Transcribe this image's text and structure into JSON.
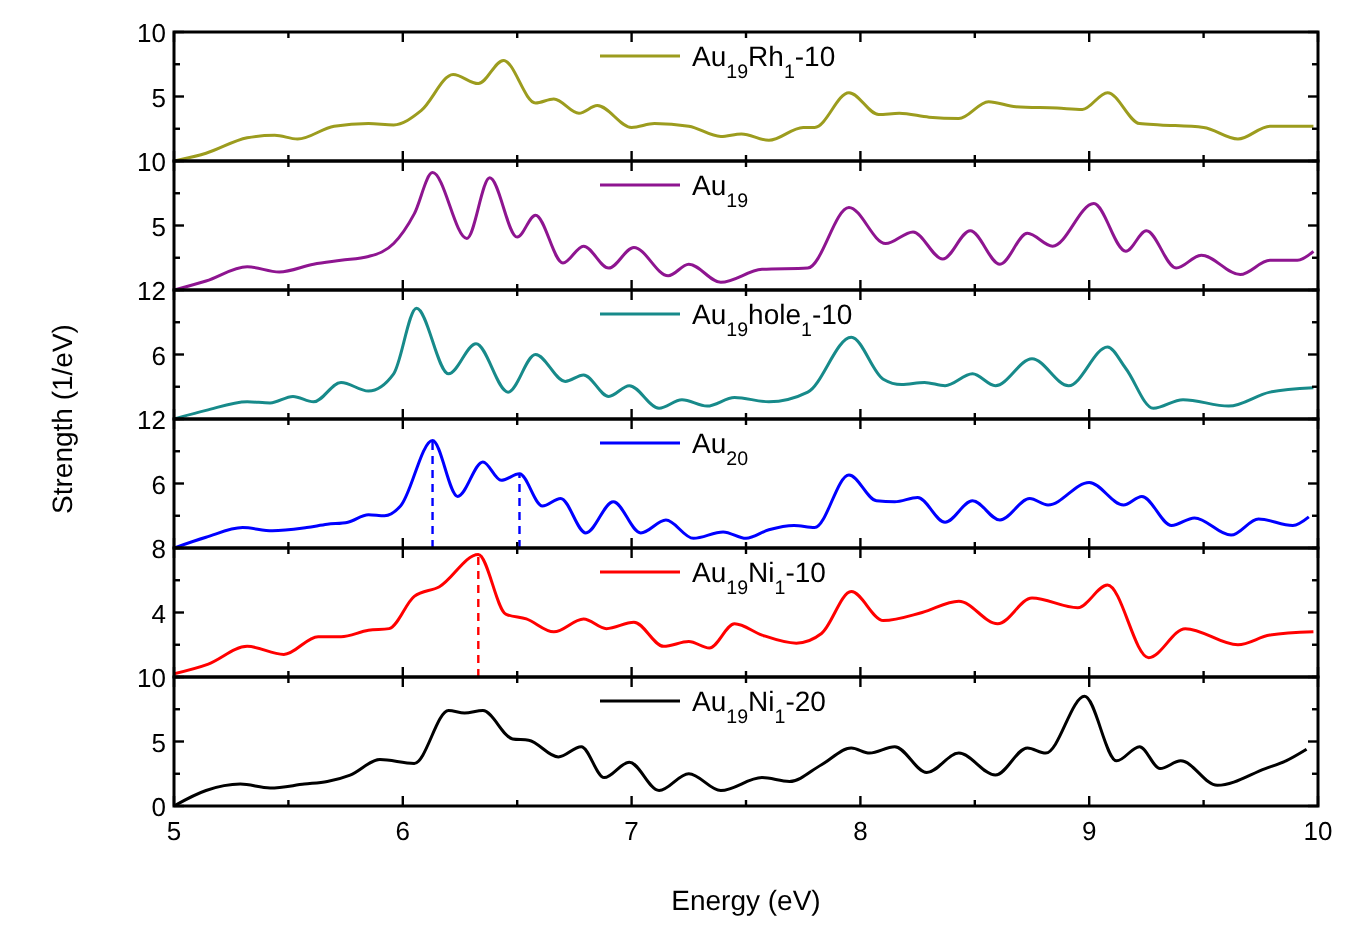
{
  "chart_data": [
    {
      "type": "line",
      "xlim": [
        5,
        10
      ],
      "xticks": [
        5,
        {
          "value": 5.5,
          "label": null
        },
        6,
        {
          "value": 6.5,
          "label": null
        },
        7,
        {
          "value": 7.5,
          "label": null
        },
        8,
        {
          "value": 8.5,
          "label": null
        },
        9,
        {
          "value": 9.5,
          "label": null
        },
        10
      ],
      "ylim": [
        0,
        10
      ],
      "yticks": [
        {
          "value": 0,
          "label": null
        },
        {
          "value": 2.5,
          "label": null
        },
        5,
        {
          "value": 7.5,
          "label": null
        },
        10
      ],
      "tick_labels": "y",
      "legend": "top",
      "series": [
        {
          "name": "Au$_{19}$Rh$_{1}$-10",
          "color": "#9c9c1e",
          "x": [
            5,
            5.14,
            5.32,
            5.44,
            5.54,
            5.7,
            5.85,
            5.96,
            6.08,
            6.22,
            6.33,
            6.44,
            6.58,
            6.66,
            6.77,
            6.85,
            7.0,
            7.1,
            7.25,
            7.39,
            7.48,
            7.6,
            7.75,
            7.8,
            7.95,
            8.08,
            8.17,
            8.3,
            8.43,
            8.56,
            8.68,
            8.86,
            8.97,
            9.08,
            9.22,
            9.31,
            9.5,
            9.65,
            9.79,
            9.98
          ],
          "values": [
            0,
            0.6,
            1.8,
            2.0,
            1.7,
            2.7,
            2.9,
            2.8,
            3.9,
            6.7,
            6.0,
            7.8,
            4.5,
            4.8,
            3.7,
            4.3,
            2.6,
            2.9,
            2.7,
            1.9,
            2.1,
            1.6,
            2.6,
            2.6,
            5.3,
            3.6,
            3.7,
            3.4,
            3.3,
            4.6,
            4.2,
            4.1,
            4.0,
            5.3,
            2.9,
            2.8,
            2.6,
            1.7,
            2.7,
            2.7
          ]
        }
      ]
    },
    {
      "type": "line",
      "xlim": [
        5,
        10
      ],
      "xticks": [
        5,
        {
          "value": 5.5,
          "label": null
        },
        6,
        {
          "value": 6.5,
          "label": null
        },
        7,
        {
          "value": 7.5,
          "label": null
        },
        8,
        {
          "value": 8.5,
          "label": null
        },
        9,
        {
          "value": 9.5,
          "label": null
        },
        10
      ],
      "ylim": [
        0,
        10
      ],
      "yticks": [
        {
          "value": 0,
          "label": null
        },
        {
          "value": 2.5,
          "label": null
        },
        5,
        {
          "value": 7.5,
          "label": null
        },
        10
      ],
      "tick_labels": "y",
      "legend": "top",
      "series": [
        {
          "name": "Au$_{19}$",
          "color": "#8e1590",
          "x": [
            5,
            5.14,
            5.32,
            5.46,
            5.61,
            5.73,
            5.85,
            5.96,
            6.05,
            6.13,
            6.28,
            6.38,
            6.5,
            6.58,
            6.7,
            6.79,
            6.9,
            7.01,
            7.16,
            7.25,
            7.39,
            7.57,
            7.77,
            7.95,
            8.11,
            8.23,
            8.36,
            8.48,
            8.61,
            8.73,
            8.84,
            9.02,
            9.16,
            9.25,
            9.38,
            9.49,
            9.66,
            9.79,
            9.91,
            9.98
          ],
          "values": [
            0,
            0.7,
            1.8,
            1.4,
            2.0,
            2.3,
            2.6,
            3.6,
            5.9,
            9.1,
            4.0,
            8.7,
            4.1,
            5.8,
            2.1,
            3.4,
            1.7,
            3.3,
            1.1,
            2.0,
            0.6,
            1.6,
            1.7,
            6.4,
            3.6,
            4.5,
            2.4,
            4.6,
            2.0,
            4.4,
            3.4,
            6.7,
            3.0,
            4.6,
            1.7,
            2.7,
            1.2,
            2.3,
            2.3,
            3.0
          ]
        }
      ]
    },
    {
      "type": "line",
      "ylabel": "Strength (1/eV)",
      "xlim": [
        5,
        10
      ],
      "xticks": [
        5,
        {
          "value": 5.5,
          "label": null
        },
        6,
        {
          "value": 6.5,
          "label": null
        },
        7,
        {
          "value": 7.5,
          "label": null
        },
        8,
        {
          "value": 8.5,
          "label": null
        },
        9,
        {
          "value": 9.5,
          "label": null
        },
        10
      ],
      "ylim": [
        0,
        12
      ],
      "yticks": [
        {
          "value": 0,
          "label": null
        },
        {
          "value": 3,
          "label": null
        },
        6,
        {
          "value": 9,
          "label": null
        },
        12
      ],
      "tick_labels": "y",
      "legend": "top",
      "series": [
        {
          "name": "Au$_{19}$hole$_{1}$-10",
          "color": "#178a8a",
          "x": [
            5,
            5.14,
            5.32,
            5.42,
            5.52,
            5.61,
            5.73,
            5.85,
            5.96,
            6.06,
            6.2,
            6.32,
            6.46,
            6.58,
            6.71,
            6.79,
            6.9,
            6.99,
            7.12,
            7.22,
            7.33,
            7.45,
            7.6,
            7.77,
            7.96,
            8.1,
            8.18,
            8.28,
            8.37,
            8.49,
            8.59,
            8.75,
            8.91,
            9.08,
            9.16,
            9.28,
            9.41,
            9.61,
            9.79,
            9.98
          ],
          "values": [
            0,
            0.8,
            1.6,
            1.5,
            2.1,
            1.6,
            3.4,
            2.6,
            4.2,
            10.3,
            4.2,
            7.0,
            2.5,
            6.0,
            3.5,
            4.1,
            2.1,
            3.1,
            1.0,
            1.8,
            1.2,
            2.0,
            1.6,
            2.5,
            7.6,
            3.7,
            3.2,
            3.4,
            3.1,
            4.2,
            3.1,
            5.6,
            3.1,
            6.7,
            4.7,
            1.0,
            1.8,
            1.2,
            2.5,
            2.9
          ]
        }
      ]
    },
    {
      "type": "line",
      "xlim": [
        5,
        10
      ],
      "xticks": [
        5,
        {
          "value": 5.5,
          "label": null
        },
        6,
        {
          "value": 6.5,
          "label": null
        },
        7,
        {
          "value": 7.5,
          "label": null
        },
        8,
        {
          "value": 8.5,
          "label": null
        },
        9,
        {
          "value": 9.5,
          "label": null
        },
        10
      ],
      "ylim": [
        0,
        12
      ],
      "yticks": [
        {
          "value": 0,
          "label": null
        },
        {
          "value": 3,
          "label": null
        },
        6,
        {
          "value": 9,
          "label": null
        },
        12
      ],
      "tick_labels": "y",
      "legend": "top",
      "ref_lines": [
        {
          "axis": "x",
          "value": 6.13,
          "color": "#0000ff",
          "line_style": "dashed"
        },
        {
          "axis": "x",
          "value": 6.51,
          "color": "#0000ff",
          "line_style": "dashed"
        }
      ],
      "series": [
        {
          "name": "Au$_{20}$",
          "color": "#0000ff",
          "x": [
            5,
            5.14,
            5.3,
            5.43,
            5.58,
            5.67,
            5.76,
            5.85,
            5.92,
            5.99,
            6.13,
            6.24,
            6.35,
            6.43,
            6.51,
            6.61,
            6.69,
            6.8,
            6.92,
            7.04,
            7.15,
            7.27,
            7.4,
            7.5,
            7.6,
            7.71,
            7.8,
            7.95,
            8.07,
            8.15,
            8.25,
            8.37,
            8.49,
            8.61,
            8.74,
            8.82,
            9.0,
            9.15,
            9.23,
            9.36,
            9.46,
            9.62,
            9.74,
            9.89,
            9.96
          ],
          "values": [
            0,
            1.0,
            1.9,
            1.6,
            1.9,
            2.2,
            2.4,
            3.1,
            3.0,
            3.9,
            10.0,
            4.8,
            8.0,
            6.3,
            6.9,
            3.9,
            4.6,
            1.4,
            4.3,
            1.4,
            2.6,
            0.9,
            1.5,
            0.9,
            1.7,
            2.1,
            1.9,
            6.8,
            4.4,
            4.3,
            4.7,
            2.4,
            4.4,
            2.6,
            4.6,
            4.0,
            6.1,
            4.0,
            4.8,
            2.1,
            2.8,
            1.2,
            2.7,
            2.1,
            2.9
          ]
        }
      ]
    },
    {
      "type": "line",
      "xlim": [
        5,
        10
      ],
      "xticks": [
        5,
        {
          "value": 5.5,
          "label": null
        },
        6,
        {
          "value": 6.5,
          "label": null
        },
        7,
        {
          "value": 7.5,
          "label": null
        },
        8,
        {
          "value": 8.5,
          "label": null
        },
        9,
        {
          "value": 9.5,
          "label": null
        },
        10
      ],
      "ylim": [
        0,
        8
      ],
      "yticks": [
        {
          "value": 0,
          "label": null
        },
        {
          "value": 2,
          "label": null
        },
        4,
        {
          "value": 6,
          "label": null
        },
        8
      ],
      "tick_labels": "y",
      "legend": "top",
      "ref_lines": [
        {
          "axis": "x",
          "value": 6.33,
          "color": "#ff0000",
          "line_style": "dashed"
        }
      ],
      "series": [
        {
          "name": "Au$_{19}$Ni$_{1}$-10",
          "color": "#ff0000",
          "x": [
            5,
            5.15,
            5.32,
            5.48,
            5.63,
            5.73,
            5.85,
            5.94,
            6.05,
            6.16,
            6.33,
            6.45,
            6.54,
            6.66,
            6.79,
            6.89,
            7.01,
            7.14,
            7.25,
            7.34,
            7.45,
            7.57,
            7.72,
            7.83,
            7.96,
            8.1,
            8.27,
            8.43,
            8.6,
            8.75,
            8.95,
            9.08,
            9.26,
            9.42,
            9.65,
            9.79,
            9.98
          ],
          "values": [
            0.2,
            0.8,
            1.9,
            1.4,
            2.5,
            2.5,
            2.9,
            3.0,
            5.0,
            5.6,
            7.6,
            3.9,
            3.6,
            2.8,
            3.6,
            3.0,
            3.4,
            1.9,
            2.2,
            1.8,
            3.3,
            2.6,
            2.1,
            2.7,
            5.3,
            3.5,
            4.0,
            4.7,
            3.3,
            4.9,
            4.3,
            5.7,
            1.2,
            3.0,
            2.0,
            2.6,
            2.8
          ]
        }
      ]
    },
    {
      "type": "line",
      "xlabel": "Energy (eV)",
      "xlim": [
        5,
        10
      ],
      "xticks": [
        5,
        {
          "value": 5.5,
          "label": null
        },
        6,
        {
          "value": 6.5,
          "label": null
        },
        7,
        {
          "value": 7.5,
          "label": null
        },
        8,
        {
          "value": 8.5,
          "label": null
        },
        9,
        {
          "value": 9.5,
          "label": null
        },
        10
      ],
      "ylim": [
        0,
        10
      ],
      "yticks": [
        0,
        {
          "value": 2.5,
          "label": null
        },
        5,
        {
          "value": 7.5,
          "label": null
        },
        10
      ],
      "legend": "top",
      "series": [
        {
          "name": "Au$_{19}$Ni$_{1}$-20",
          "color": "#000000",
          "x": [
            5,
            5.14,
            5.29,
            5.42,
            5.57,
            5.67,
            5.77,
            5.9,
            6.05,
            6.2,
            6.27,
            6.35,
            6.48,
            6.55,
            6.68,
            6.78,
            6.88,
            6.99,
            7.12,
            7.25,
            7.39,
            7.57,
            7.69,
            7.83,
            7.96,
            8.04,
            8.15,
            8.29,
            8.43,
            8.59,
            8.73,
            8.81,
            8.98,
            9.12,
            9.22,
            9.31,
            9.4,
            9.56,
            9.77,
            9.86,
            9.95
          ],
          "values": [
            0,
            1.2,
            1.7,
            1.4,
            1.7,
            1.9,
            2.4,
            3.6,
            3.3,
            7.4,
            7.2,
            7.4,
            5.2,
            5.1,
            3.8,
            4.6,
            2.2,
            3.4,
            1.2,
            2.5,
            1.2,
            2.2,
            1.9,
            3.2,
            4.5,
            4.1,
            4.6,
            2.6,
            4.1,
            2.4,
            4.5,
            4.1,
            8.5,
            3.5,
            4.6,
            2.9,
            3.5,
            1.6,
            2.9,
            3.5,
            4.4
          ]
        }
      ]
    }
  ]
}
